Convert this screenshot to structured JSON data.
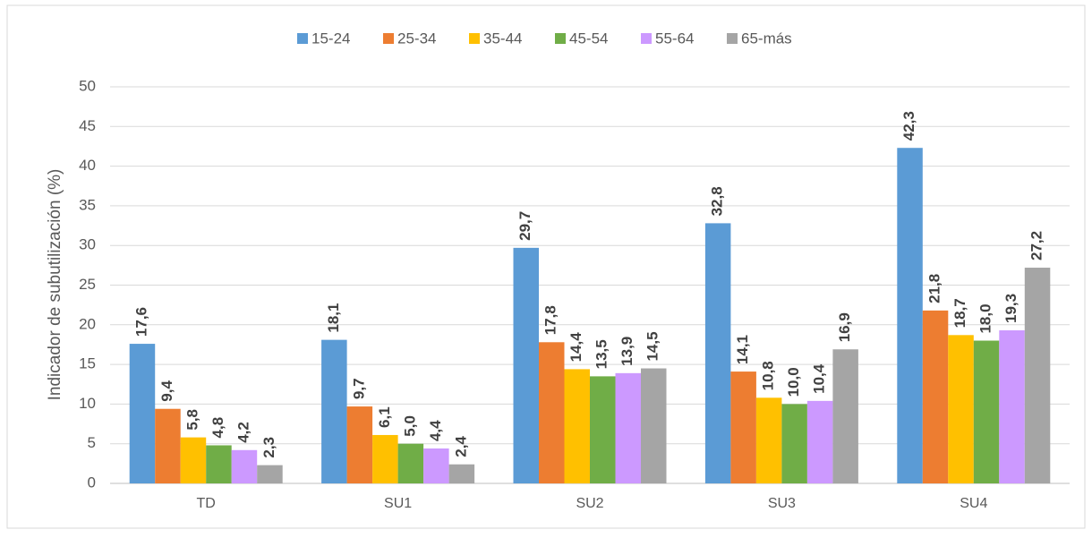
{
  "chart_data": {
    "type": "bar",
    "y_label": "Indicador de subutilización (%)",
    "categories": [
      "TD",
      "SU1",
      "SU2",
      "SU3",
      "SU4"
    ],
    "series": [
      {
        "name": "15-24",
        "color": "#5b9bd5",
        "values": [
          17.6,
          18.1,
          29.7,
          32.8,
          42.3
        ],
        "value_labels": [
          "17,6",
          "18,1",
          "29,7",
          "32,8",
          "42,3"
        ]
      },
      {
        "name": "25-34",
        "color": "#ed7d31",
        "values": [
          9.4,
          9.7,
          17.8,
          14.1,
          21.8
        ],
        "value_labels": [
          "9,4",
          "9,7",
          "17,8",
          "14,1",
          "21,8"
        ]
      },
      {
        "name": "35-44",
        "color": "#ffc000",
        "values": [
          5.8,
          6.1,
          14.4,
          10.8,
          18.7
        ],
        "value_labels": [
          "5,8",
          "6,1",
          "14,4",
          "10,8",
          "18,7"
        ]
      },
      {
        "name": "45-54",
        "color": "#70ad47",
        "values": [
          4.8,
          5.0,
          13.5,
          10.0,
          18.0
        ],
        "value_labels": [
          "4,8",
          "5,0",
          "13,5",
          "10,0",
          "18,0"
        ]
      },
      {
        "name": "55-64",
        "color": "#cc99ff",
        "values": [
          4.2,
          4.4,
          13.9,
          10.4,
          19.3
        ],
        "value_labels": [
          "4,2",
          "4,4",
          "13,9",
          "10,4",
          "19,3"
        ]
      },
      {
        "name": "65-más",
        "color": "#a5a5a5",
        "values": [
          2.3,
          2.4,
          14.5,
          16.9,
          27.2
        ],
        "value_labels": [
          "2,3",
          "2,4",
          "14,5",
          "16,9",
          "27,2"
        ]
      }
    ],
    "ylim": [
      0,
      50
    ],
    "yticks": [
      0,
      5,
      10,
      15,
      20,
      25,
      30,
      35,
      40,
      45,
      50
    ],
    "grid": true,
    "legend": "top"
  }
}
